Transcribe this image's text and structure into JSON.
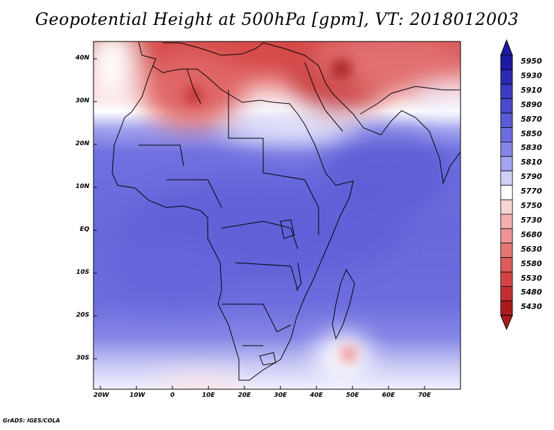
{
  "title": "Geopotential Height at 500hPa [gpm], VT: 2018012003",
  "credit": "GrADS: IGES/COLA",
  "lat_labels": [
    "40N",
    "30N",
    "20N",
    "10N",
    "EQ",
    "10S",
    "20S",
    "30S"
  ],
  "lon_labels": [
    "20W",
    "10W",
    "0",
    "10E",
    "20E",
    "30E",
    "40E",
    "50E",
    "60E",
    "70E"
  ],
  "colorbar": {
    "levels": [
      "5950",
      "5930",
      "5910",
      "5890",
      "5870",
      "5850",
      "5830",
      "5810",
      "5790",
      "5770",
      "5750",
      "5730",
      "5680",
      "5630",
      "5580",
      "5530",
      "5480",
      "5430"
    ],
    "colors": [
      "#1d1a9e",
      "#2e2ab0",
      "#3c3bbf",
      "#4a4acb",
      "#5b5bd6",
      "#6d6ddf",
      "#8585e6",
      "#a4a4ef",
      "#d0d0f7",
      "#ffffff",
      "#f8d4d4",
      "#f2b0b0",
      "#ec9494",
      "#e47676",
      "#dc5c5c",
      "#d24444",
      "#c03030",
      "#a81c1c"
    ]
  },
  "map_data": {
    "field": "500hPa geopotential height",
    "units": "gpm",
    "valid_time": "2018012003",
    "region": {
      "lon_range": [
        -23,
        79
      ],
      "lat_range": [
        -37,
        45
      ]
    },
    "colors": {
      "land_border": "#000000",
      "high": "#5a5ad4",
      "low": "#c83232"
    }
  }
}
